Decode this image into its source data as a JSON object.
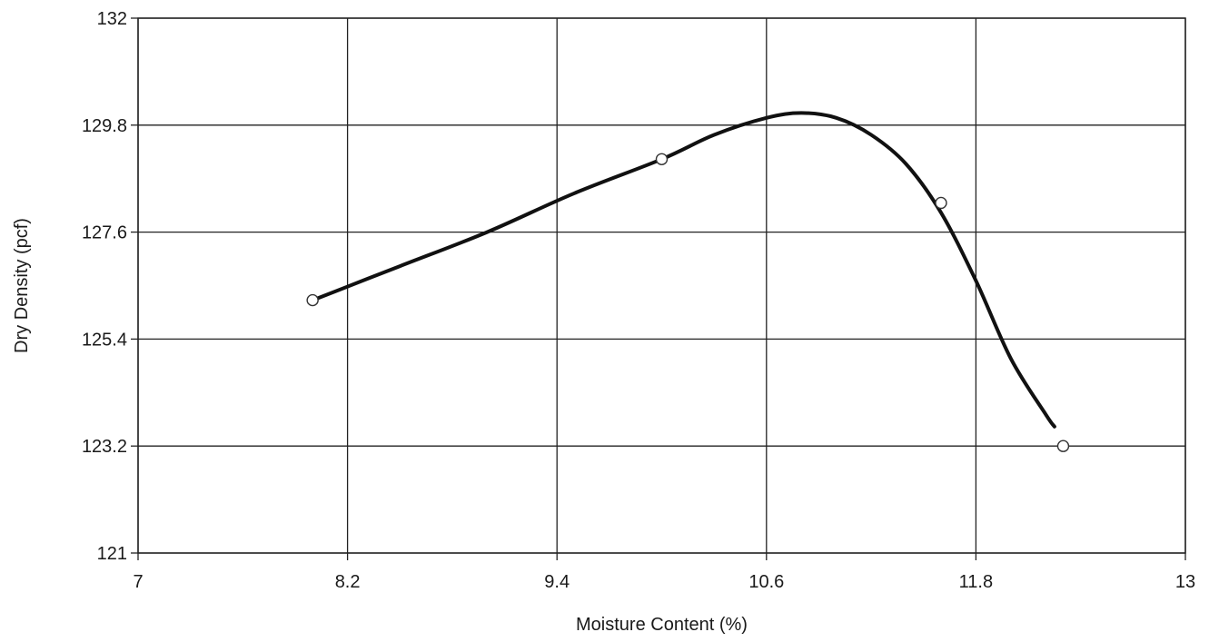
{
  "chart_data": {
    "type": "line",
    "title": "",
    "xlabel": "Moisture Content (%)",
    "ylabel": "Dry Density (pcf)",
    "xlim": [
      7,
      13
    ],
    "ylim": [
      121,
      132
    ],
    "x_ticks": [
      "7",
      "8.2",
      "9.4",
      "10.6",
      "11.8",
      "13"
    ],
    "y_ticks": [
      "121",
      "123.2",
      "125.4",
      "127.6",
      "129.8",
      "132"
    ],
    "grid": true,
    "legend": "none",
    "series": [
      {
        "type": "scatter",
        "marker": "open-circle",
        "x": [
          8.0,
          10.0,
          11.6,
          12.3
        ],
        "y": [
          126.2,
          129.1,
          128.2,
          123.2
        ]
      },
      {
        "type": "line",
        "style": "fitted-curve",
        "x": [
          8.0,
          8.5,
          9.0,
          9.5,
          10.0,
          10.3,
          10.6,
          10.8,
          11.0,
          11.2,
          11.4,
          11.6,
          11.8,
          12.0,
          12.2,
          12.25
        ],
        "y": [
          126.2,
          126.9,
          127.6,
          128.4,
          129.1,
          129.6,
          129.95,
          130.05,
          129.95,
          129.6,
          129.0,
          128.0,
          126.6,
          125.0,
          123.85,
          123.6
        ]
      }
    ],
    "colors": {
      "line": "#111111",
      "grid": "#222222",
      "marker": "#333333"
    }
  }
}
